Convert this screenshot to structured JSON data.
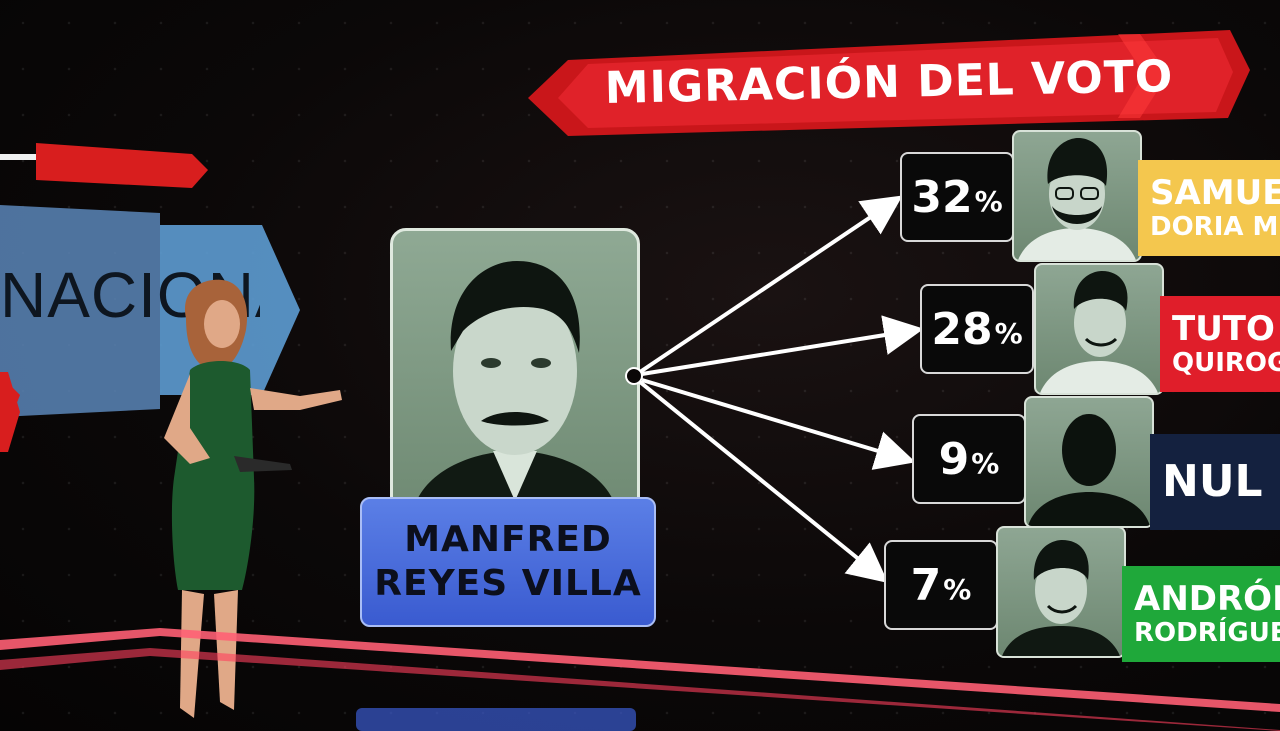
{
  "title": "MIGRACIÓN DEL VOTO",
  "background_text": "NACIONAL",
  "source_candidate": {
    "line1": "MANFRED",
    "line2": "REYES VILLA"
  },
  "rows": [
    {
      "pct": "32",
      "pct_sign": "%",
      "name1": "SAMUEL",
      "name2": "DORIA ME",
      "tag_color": "#f4c74e",
      "photo": "samuel-doria-medina"
    },
    {
      "pct": "28",
      "pct_sign": "%",
      "name1": "TUTO",
      "name2": "QUIROGA",
      "tag_color": "#e01e2a",
      "photo": "tuto-quiroga"
    },
    {
      "pct": "9",
      "pct_sign": "%",
      "name1": "NUL",
      "name2": "",
      "tag_color": "#14213f",
      "photo": "silhouette"
    },
    {
      "pct": "7",
      "pct_sign": "%",
      "name1": "ANDRÓNI",
      "name2": "RODRÍGUEZ",
      "tag_color": "#1fa83a",
      "photo": "andronico-rodriguez"
    }
  ],
  "colors": {
    "banner_red": "#d81e1e",
    "center_label_blue": "#4a6ee0",
    "floor_light": "#ff4f6e"
  }
}
